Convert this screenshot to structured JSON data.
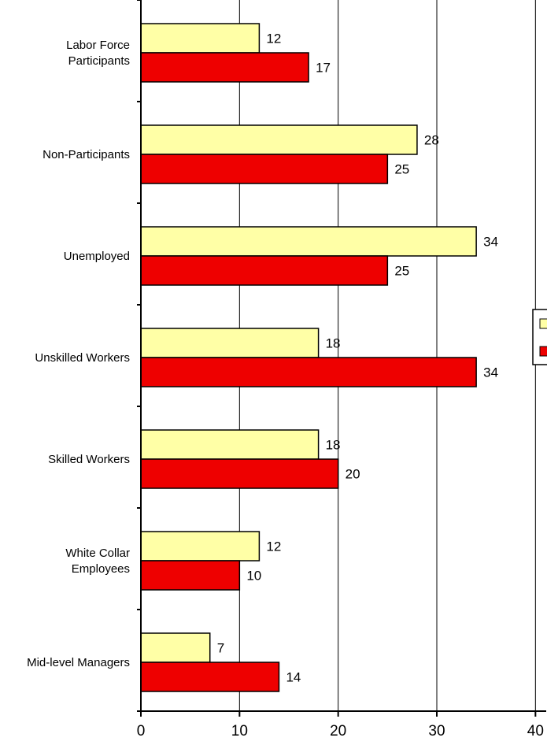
{
  "colors": {
    "series_a": "#FFFFA6",
    "series_b": "#EE0000",
    "grid": "#000000",
    "text": "#000000"
  },
  "chart_data": {
    "type": "bar",
    "orientation": "horizontal",
    "categories": [
      [
        "Labor Force",
        "Participants"
      ],
      [
        "Non-Participants"
      ],
      [
        "Unemployed"
      ],
      [
        "Unskilled Workers"
      ],
      [
        "Skilled Workers"
      ],
      [
        "White Collar",
        "Employees"
      ],
      [
        "Mid-level Managers"
      ]
    ],
    "series": [
      {
        "values": [
          12,
          28,
          34,
          18,
          18,
          12,
          7
        ]
      },
      {
        "values": [
          17,
          25,
          25,
          34,
          20,
          10,
          14
        ]
      }
    ],
    "xlim": [
      0,
      40
    ],
    "xticks": [
      "0",
      "10",
      "20",
      "30",
      "40"
    ],
    "grid": "vertical-major",
    "legend": "right (cut off)",
    "title": "",
    "xlabel": "",
    "ylabel": ""
  }
}
